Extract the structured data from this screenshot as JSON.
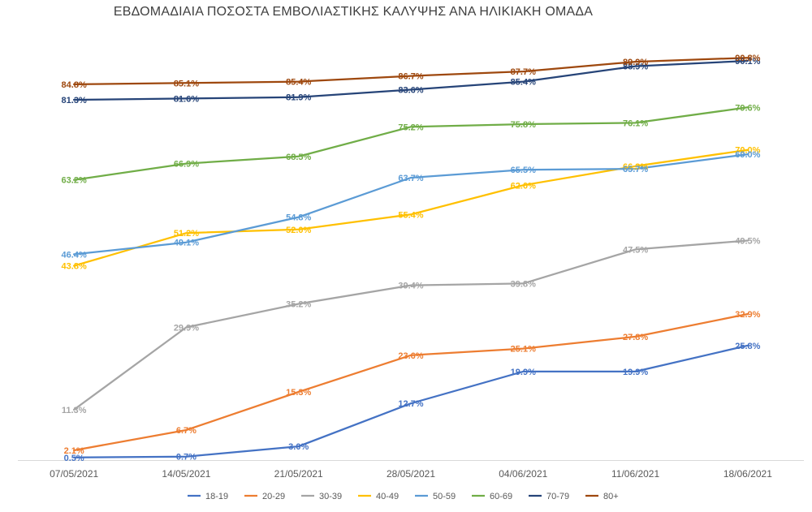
{
  "chart_data": {
    "type": "line",
    "title": "ΕΒΔΟΜΑΔΙΑΙΑ ΠΟΣΟΣΤΑ ΕΜΒΟΛΙΑΣΤΙΚΗΣ ΚΑΛΥΨΗΣ ΑΝΑ ΗΛΙΚΙΑΚΗ ΟΜΑΔΑ",
    "xlabel": "",
    "ylabel": "",
    "x": [
      "07/05/2021",
      "14/05/2021",
      "21/05/2021",
      "28/05/2021",
      "04/06/2021",
      "11/06/2021",
      "18/06/2021"
    ],
    "ylim": [
      0,
      100
    ],
    "grid": false,
    "legend_position": "bottom",
    "series": [
      {
        "name": "18-19",
        "color": "#4472c4",
        "values": [
          0.5,
          0.7,
          3.0,
          12.7,
          19.9,
          19.9,
          25.8
        ],
        "labels": [
          "0.5%",
          "0.7%",
          "3.0%",
          "12.7%",
          "19.9%",
          "19.9%",
          "25.8%"
        ]
      },
      {
        "name": "20-29",
        "color": "#ed7d31",
        "values": [
          2.1,
          6.7,
          15.3,
          23.6,
          25.1,
          27.8,
          32.9
        ],
        "labels": [
          "2.1%",
          "6.7%",
          "15.3%",
          "23.6%",
          "25.1%",
          "27.8%",
          "32.9%"
        ]
      },
      {
        "name": "30-39",
        "color": "#a5a5a5",
        "values": [
          11.3,
          29.9,
          35.2,
          39.4,
          39.8,
          47.5,
          49.5
        ],
        "labels": [
          "11.3%",
          "29.9%",
          "35.2%",
          "39.4%",
          "39.8%",
          "47.5%",
          "49.5%"
        ]
      },
      {
        "name": "40-49",
        "color": "#ffc000",
        "values": [
          43.8,
          51.2,
          52.0,
          55.4,
          62.0,
          66.3,
          70.0
        ],
        "labels": [
          "43.8%",
          "51.2%",
          "52.0%",
          "55.4%",
          "62.0%",
          "66.3%",
          "70.0%"
        ]
      },
      {
        "name": "50-59",
        "color": "#5b9bd5",
        "values": [
          46.4,
          49.1,
          54.8,
          63.7,
          65.5,
          65.7,
          69.0
        ],
        "labels": [
          "46.4%",
          "49.1%",
          "54.8%",
          "63.7%",
          "65.5%",
          "65.7%",
          "69.0%"
        ]
      },
      {
        "name": "60-69",
        "color": "#70ad47",
        "values": [
          63.2,
          66.9,
          68.5,
          75.2,
          75.8,
          76.1,
          79.6
        ],
        "labels": [
          "63.2%",
          "66.9%",
          "68.5%",
          "75.2%",
          "75.8%",
          "76.1%",
          "79.6%"
        ]
      },
      {
        "name": "70-79",
        "color": "#264478",
        "values": [
          81.3,
          81.6,
          81.9,
          83.6,
          85.4,
          88.9,
          90.1
        ],
        "labels": [
          "81.3%",
          "81.6%",
          "81.9%",
          "83.6%",
          "85.4%",
          "88.9%",
          "90.1%"
        ]
      },
      {
        "name": "80+",
        "color": "#9e480e",
        "values": [
          84.8,
          85.1,
          85.4,
          86.7,
          87.7,
          89.9,
          90.8
        ],
        "labels": [
          "84.8%",
          "85.1%",
          "85.4%",
          "86.7%",
          "87.7%",
          "89.9%",
          "90.8%"
        ]
      }
    ]
  }
}
